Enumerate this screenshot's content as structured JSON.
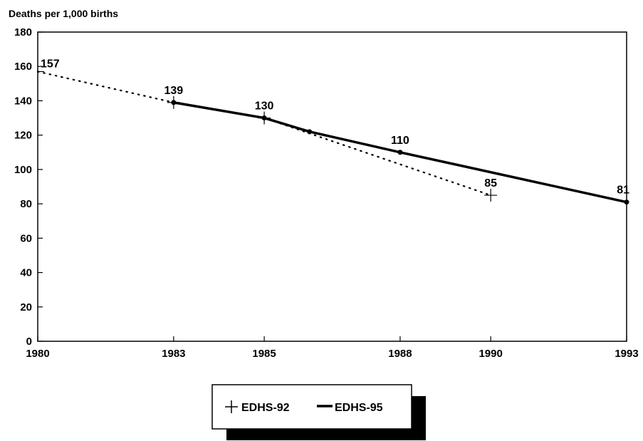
{
  "chart_data": {
    "type": "line",
    "title": "",
    "xlabel": "",
    "ylabel": "Deaths per 1,000 births",
    "xlim": [
      1980,
      1993
    ],
    "ylim": [
      0,
      180
    ],
    "x_ticks": [
      "1980",
      "1983",
      "1985",
      "1988",
      "1990",
      "1993"
    ],
    "y_ticks": [
      "0",
      "20",
      "40",
      "60",
      "80",
      "100",
      "120",
      "140",
      "160",
      "180"
    ],
    "grid": false,
    "legend_position": "bottom-center",
    "series": [
      {
        "name": "EDHS-92",
        "style": "dotted",
        "marker": "plus",
        "color": "#000000",
        "points": [
          {
            "x": 1980,
            "y": 157,
            "label": "157"
          },
          {
            "x": 1983,
            "y": 139,
            "label": "139"
          },
          {
            "x": 1985,
            "y": 130,
            "label": "130"
          },
          {
            "x": 1990,
            "y": 85,
            "label": "85"
          }
        ]
      },
      {
        "name": "EDHS-95",
        "style": "solid",
        "marker": "dot",
        "color": "#000000",
        "points": [
          {
            "x": 1983,
            "y": 139,
            "label": ""
          },
          {
            "x": 1985,
            "y": 130,
            "label": ""
          },
          {
            "x": 1986,
            "y": 122,
            "label": ""
          },
          {
            "x": 1988,
            "y": 110,
            "label": "110"
          },
          {
            "x": 1993,
            "y": 81,
            "label": "81"
          }
        ]
      }
    ]
  }
}
